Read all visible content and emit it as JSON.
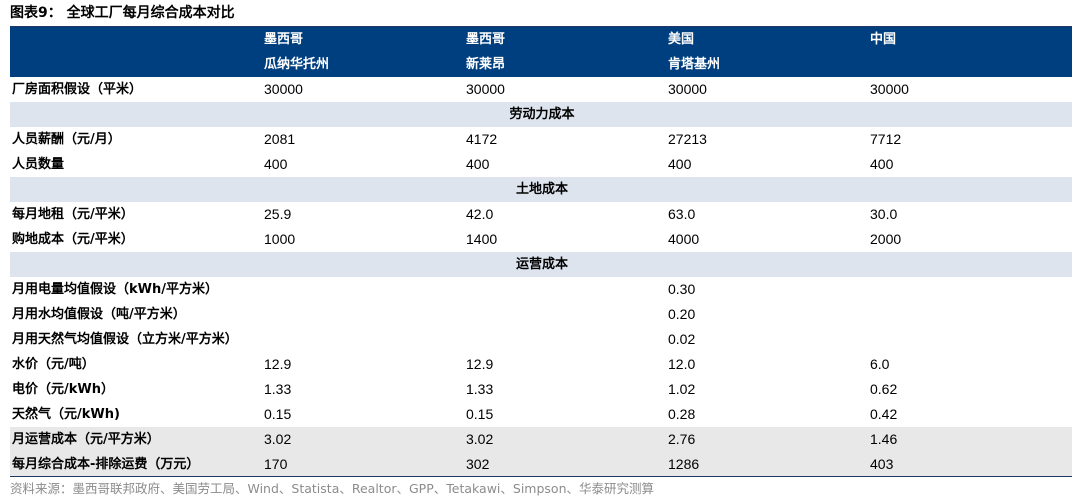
{
  "title": "图表9：  全球工厂每月综合成本对比",
  "header": {
    "col1_line1": "墨西哥",
    "col1_line2": "瓜纳华托州",
    "col2_line1": "墨西哥",
    "col2_line2": "新莱昂",
    "col3_line1": "美国",
    "col3_line2": "肯塔基州",
    "col4_line1": "中国",
    "col4_line2": ""
  },
  "rows": {
    "area": {
      "label": "厂房面积假设（平米）",
      "v": [
        "30000",
        "30000",
        "30000",
        "30000"
      ]
    },
    "sec_labor": "劳动力成本",
    "salary": {
      "label": "人员薪酬（元/月）",
      "v": [
        "2081",
        "4172",
        "27213",
        "7712"
      ]
    },
    "headcount": {
      "label": "人员数量",
      "v": [
        "400",
        "400",
        "400",
        "400"
      ]
    },
    "sec_land": "土地成本",
    "rent": {
      "label": "每月地租（元/平米）",
      "v": [
        "25.9",
        "42.0",
        "63.0",
        "30.0"
      ]
    },
    "landcost": {
      "label": "购地成本（元/平米）",
      "v": [
        "1000",
        "1400",
        "4000",
        "2000"
      ]
    },
    "sec_ops": "运营成本",
    "elec_use": {
      "label": "月用电量均值假设（kWh/平方米）",
      "v": "0.30"
    },
    "water_use": {
      "label": "月用水均值假设（吨/平方米）",
      "v": "0.20"
    },
    "gas_use": {
      "label": "月用天然气均值假设（立方米/平方米）",
      "v": "0.02"
    },
    "water_price": {
      "label": "水价（元/吨）",
      "v": [
        "12.9",
        "12.9",
        "12.0",
        "6.0"
      ]
    },
    "elec_price": {
      "label": "电价（元/kWh）",
      "v": [
        "1.33",
        "1.33",
        "1.02",
        "0.62"
      ]
    },
    "gas_price": {
      "label": "天然气（元/kWh)",
      "v": [
        "0.15",
        "0.15",
        "0.28",
        "0.42"
      ]
    },
    "ops_cost": {
      "label": "月运营成本（元/平方米）",
      "v": [
        "3.02",
        "3.02",
        "2.76",
        "1.46"
      ]
    },
    "total": {
      "label": "每月综合成本-排除运费（万元）",
      "v": [
        "170",
        "302",
        "1286",
        "403"
      ]
    }
  },
  "source": "资料来源：墨西哥联邦政府、美国劳工局、Wind、Statista、Realtor、GPP、Tetakawi、Simpson、华泰研究测算"
}
